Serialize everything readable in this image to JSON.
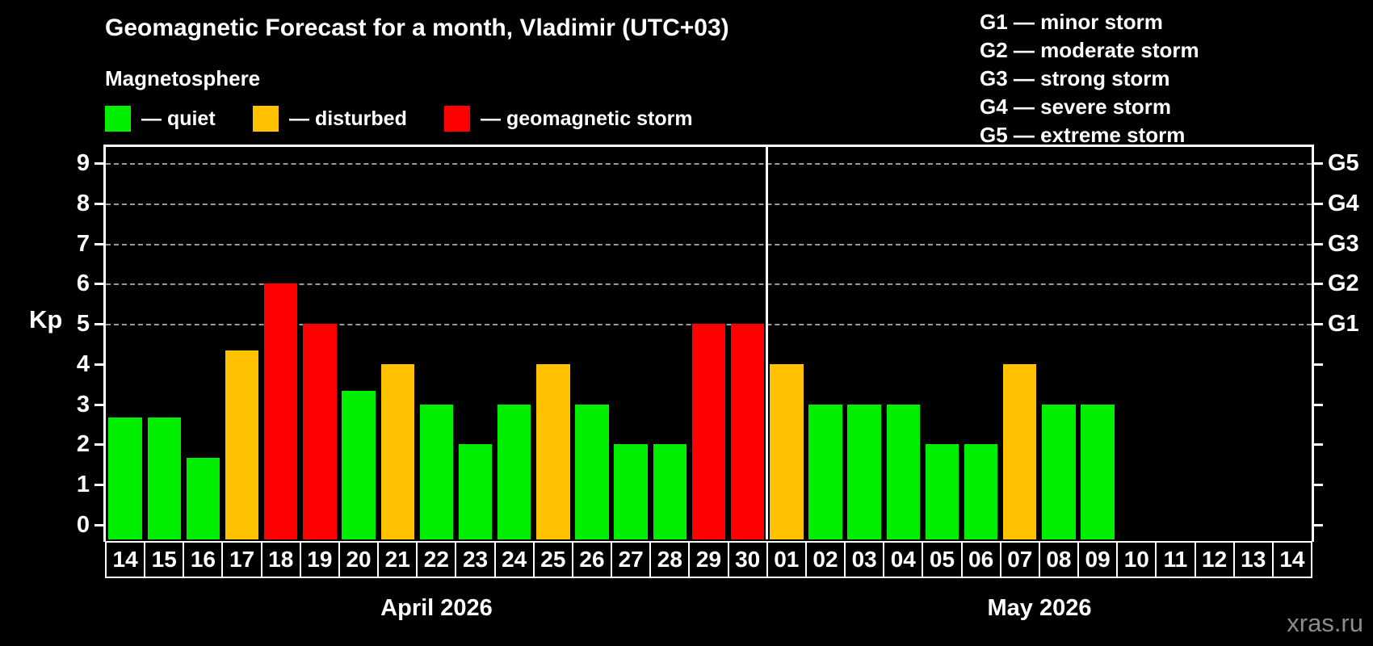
{
  "title": "Geomagnetic Forecast for a month, Vladimir (UTC+03)",
  "subtitle": "Magnetosphere",
  "legend": {
    "items": [
      {
        "name": "quiet",
        "label": "— quiet",
        "color": "#00ee00"
      },
      {
        "name": "disturbed",
        "label": "— disturbed",
        "color": "#ffc200"
      },
      {
        "name": "storm",
        "label": "— geomagnetic storm",
        "color": "#ff0000"
      }
    ]
  },
  "gscale": {
    "lines": [
      "G1 — minor storm",
      "G2 — moderate storm",
      "G3 — strong storm",
      "G4 — severe storm",
      "G5 — extreme storm"
    ]
  },
  "watermark": "xras.ru",
  "chart_data": {
    "type": "bar",
    "title": "Geomagnetic Forecast for a month, Vladimir (UTC+03)",
    "ylabel": "Kp",
    "ylim": [
      0,
      9.4
    ],
    "yticks": [
      0,
      1,
      2,
      3,
      4,
      5,
      6,
      7,
      8,
      9
    ],
    "gridlines": [
      5,
      6,
      7,
      8,
      9
    ],
    "grid": "horizontal dashed at storm levels only",
    "legend_position": "top-left",
    "right_axis": [
      {
        "kp": 5,
        "label": "G1"
      },
      {
        "kp": 6,
        "label": "G2"
      },
      {
        "kp": 7,
        "label": "G3"
      },
      {
        "kp": 8,
        "label": "G4"
      },
      {
        "kp": 9,
        "label": "G5"
      }
    ],
    "months": [
      {
        "label": "April 2026",
        "start_index": 0,
        "count": 17
      },
      {
        "label": "May 2026",
        "start_index": 17,
        "count": 14
      }
    ],
    "colors": {
      "quiet": "#00ee00",
      "disturbed": "#ffc200",
      "storm": "#ff0000"
    },
    "days": [
      {
        "day": "14",
        "kp": 2.67,
        "status": "quiet"
      },
      {
        "day": "15",
        "kp": 2.67,
        "status": "quiet"
      },
      {
        "day": "16",
        "kp": 1.67,
        "status": "quiet"
      },
      {
        "day": "17",
        "kp": 4.33,
        "status": "disturbed"
      },
      {
        "day": "18",
        "kp": 6,
        "status": "storm"
      },
      {
        "day": "19",
        "kp": 5,
        "status": "storm"
      },
      {
        "day": "20",
        "kp": 3.33,
        "status": "quiet"
      },
      {
        "day": "21",
        "kp": 4,
        "status": "disturbed"
      },
      {
        "day": "22",
        "kp": 3,
        "status": "quiet"
      },
      {
        "day": "23",
        "kp": 2,
        "status": "quiet"
      },
      {
        "day": "24",
        "kp": 3,
        "status": "quiet"
      },
      {
        "day": "25",
        "kp": 4,
        "status": "disturbed"
      },
      {
        "day": "26",
        "kp": 3,
        "status": "quiet"
      },
      {
        "day": "27",
        "kp": 2,
        "status": "quiet"
      },
      {
        "day": "28",
        "kp": 2,
        "status": "quiet"
      },
      {
        "day": "29",
        "kp": 5,
        "status": "storm"
      },
      {
        "day": "30",
        "kp": 5,
        "status": "storm"
      },
      {
        "day": "01",
        "kp": 4,
        "status": "disturbed"
      },
      {
        "day": "02",
        "kp": 3,
        "status": "quiet"
      },
      {
        "day": "03",
        "kp": 3,
        "status": "quiet"
      },
      {
        "day": "04",
        "kp": 3,
        "status": "quiet"
      },
      {
        "day": "05",
        "kp": 2,
        "status": "quiet"
      },
      {
        "day": "06",
        "kp": 2,
        "status": "quiet"
      },
      {
        "day": "07",
        "kp": 4,
        "status": "disturbed"
      },
      {
        "day": "08",
        "kp": 3,
        "status": "quiet"
      },
      {
        "day": "09",
        "kp": 3,
        "status": "quiet"
      },
      {
        "day": "10",
        "kp": null,
        "status": "none"
      },
      {
        "day": "11",
        "kp": null,
        "status": "none"
      },
      {
        "day": "12",
        "kp": null,
        "status": "none"
      },
      {
        "day": "13",
        "kp": null,
        "status": "none"
      },
      {
        "day": "14",
        "kp": null,
        "status": "none"
      }
    ]
  }
}
